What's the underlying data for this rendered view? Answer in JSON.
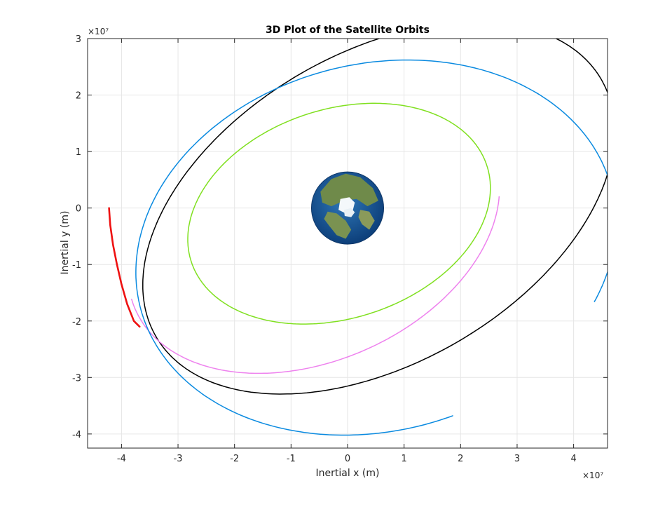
{
  "chart_data": {
    "type": "line",
    "title": "3D Plot of the Satellite Orbits",
    "xlabel": "Inertial x (m)",
    "ylabel": "Inertial y (m)",
    "x_exponent_label": "×10⁷",
    "y_exponent_label": "×10⁷",
    "xlim": [
      -4.6,
      4.6
    ],
    "ylim": [
      -4.25,
      3.0
    ],
    "scale": 10000000.0,
    "x_ticks": [
      -4,
      -3,
      -2,
      -1,
      0,
      1,
      2,
      3,
      4
    ],
    "y_ticks": [
      -4,
      -3,
      -2,
      -1,
      0,
      1,
      2,
      3
    ],
    "x_tick_labels": [
      "-4",
      "-3",
      "-2",
      "-1",
      "0",
      "1",
      "2",
      "3",
      "4"
    ],
    "y_tick_labels": [
      "-4",
      "-3",
      "-2",
      "-1",
      "0",
      "1",
      "2",
      "3"
    ],
    "grid": true,
    "earth": {
      "center": [
        0,
        0
      ],
      "radius": 0.64,
      "view": "north-pole"
    },
    "series": [
      {
        "color": "#000000",
        "shape": "ellipse",
        "center": [
          0.55,
          0.0
        ],
        "semi_major": 4.55,
        "semi_minor": 2.75,
        "rotation_deg": 30,
        "arc_deg": [
          0,
          360
        ]
      },
      {
        "color": "#80e020",
        "shape": "ellipse",
        "center": [
          -0.15,
          -0.1
        ],
        "semi_major": 2.75,
        "semi_minor": 1.85,
        "rotation_deg": 18,
        "arc_deg": [
          0,
          360
        ]
      },
      {
        "color": "#ee82ee",
        "shape": "ellipse",
        "center": [
          -0.6,
          -0.4
        ],
        "semi_major": 3.45,
        "semi_minor": 2.3,
        "rotation_deg": 24,
        "arc_deg": [
          175,
          340
        ]
      },
      {
        "color": "#0a8ae0",
        "shape": "ellipse",
        "center": [
          0.5,
          -0.7
        ],
        "semi_major": 4.3,
        "semi_minor": 3.25,
        "rotation_deg": 14,
        "arc_deg": [
          -35,
          278
        ]
      },
      {
        "color": "#ee1111",
        "shape": "arc",
        "points": [
          [
            -4.22,
            0.0
          ],
          [
            -4.2,
            -0.3
          ],
          [
            -4.15,
            -0.65
          ],
          [
            -4.08,
            -1.0
          ],
          [
            -4.0,
            -1.35
          ],
          [
            -3.9,
            -1.7
          ],
          [
            -3.78,
            -2.0
          ],
          [
            -3.68,
            -2.1
          ]
        ]
      }
    ]
  }
}
